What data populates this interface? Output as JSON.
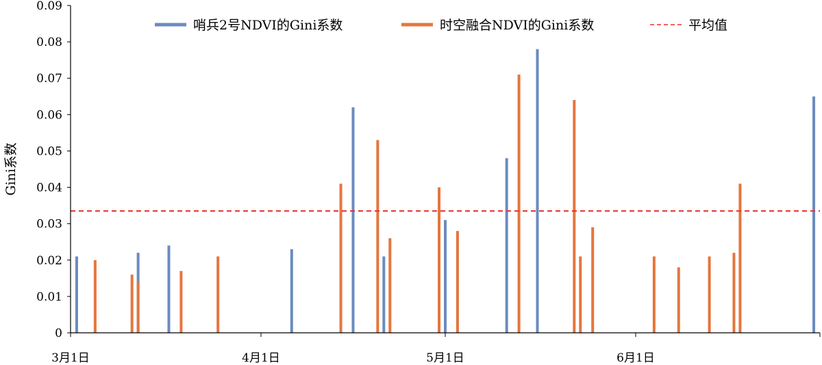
{
  "chart_data": {
    "type": "bar",
    "ylabel": "Gini系数",
    "xlabel": "",
    "title": "",
    "ylim": [
      0,
      0.09
    ],
    "y_ticks": [
      "0",
      "0.01",
      "0.02",
      "0.03",
      "0.04",
      "0.05",
      "0.06",
      "0.07",
      "0.08",
      "0.09"
    ],
    "x_ticks": [
      "3月1日",
      "4月1日",
      "5月1日",
      "6月1日"
    ],
    "x_tick_days": [
      0,
      31,
      61,
      92
    ],
    "x_range_days": [
      0,
      122
    ],
    "legend_position": "top",
    "mean_value": 0.0335,
    "mean_label": "平均值",
    "mean_color": "#e8312b",
    "series": [
      {
        "name": "哨兵2号NDVI的Gini系数",
        "color": "#6b8bbf",
        "x_days": [
          1,
          11,
          16,
          36,
          46,
          51,
          61,
          71,
          76,
          121
        ],
        "values": [
          0.021,
          0.022,
          0.024,
          0.023,
          0.062,
          0.021,
          0.031,
          0.048,
          0.078,
          0.065
        ]
      },
      {
        "name": "时空融合NDVI的Gini系数",
        "color": "#e4763d",
        "x_days": [
          4,
          10,
          11,
          18,
          24,
          44,
          50,
          52,
          60,
          63,
          73,
          82,
          83,
          85,
          95,
          99,
          104,
          108,
          109
        ],
        "values": [
          0.02,
          0.016,
          0.014,
          0.017,
          0.021,
          0.041,
          0.053,
          0.026,
          0.04,
          0.028,
          0.071,
          0.064,
          0.021,
          0.029,
          0.021,
          0.018,
          0.021,
          0.022,
          0.041
        ]
      }
    ]
  }
}
